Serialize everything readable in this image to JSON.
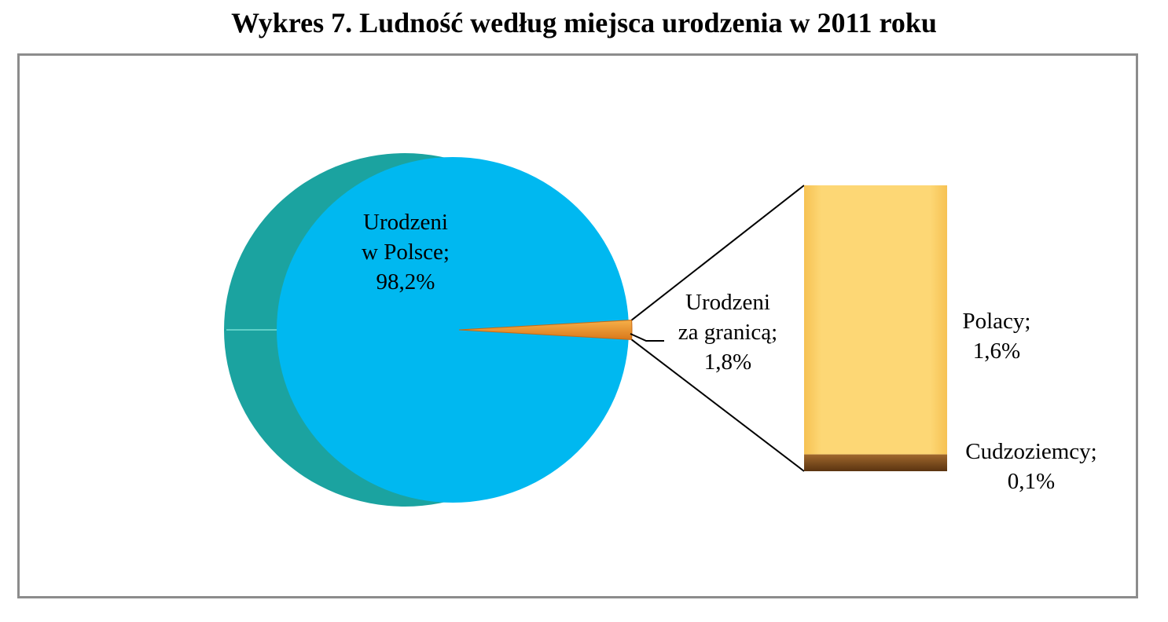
{
  "chart_data": {
    "type": "pie",
    "variant": "bar-of-pie",
    "title": "Wykres 7. Ludność według miejsca urodzenia w 2011 roku",
    "pie": {
      "slices": [
        {
          "label_lines": [
            "Urodzeni",
            "w Polsce;",
            "98,2%"
          ],
          "value": 98.2,
          "color": "#00b8f0",
          "side_color": "#1ba3a0"
        },
        {
          "label_lines": [
            "Urodzeni",
            "za granicą;",
            "1,8%"
          ],
          "value": 1.8,
          "color": "#f2a13a"
        }
      ]
    },
    "bar": {
      "segments": [
        {
          "label_lines": [
            "Polacy;",
            "1,6%"
          ],
          "value": 1.6,
          "color": "#fdd775"
        },
        {
          "label_lines": [
            "Cudzoziemcy;",
            "0,1%"
          ],
          "value": 0.1,
          "color": "#7a4a1c"
        }
      ]
    }
  }
}
